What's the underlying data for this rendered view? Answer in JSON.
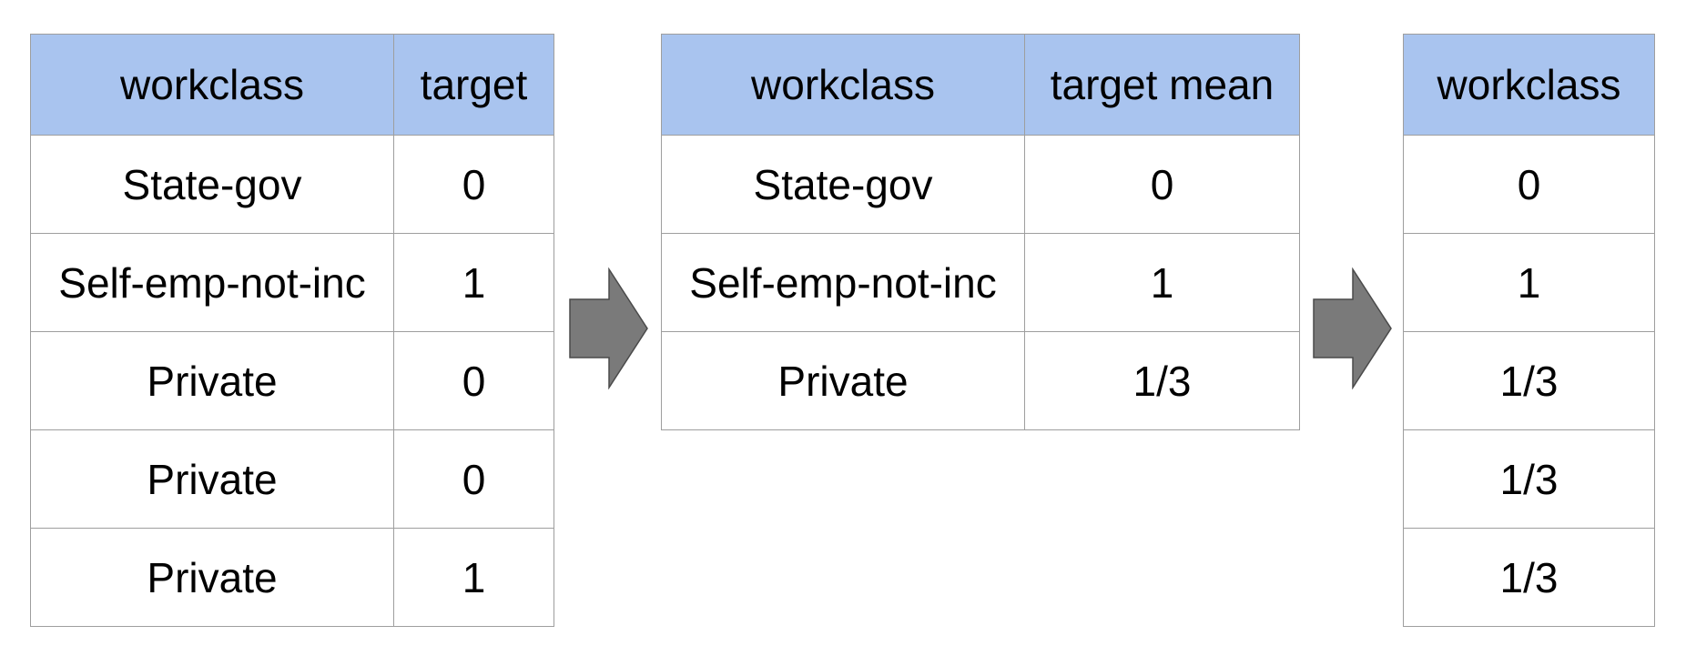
{
  "colors": {
    "header_bg": "#a9c4ef",
    "border": "#9e9e9e",
    "arrow_fill": "#7a7a7a"
  },
  "input_table": {
    "headers": [
      "workclass",
      "target"
    ],
    "rows": [
      [
        "State-gov",
        "0"
      ],
      [
        "Self-emp-not-inc",
        "1"
      ],
      [
        "Private",
        "0"
      ],
      [
        "Private",
        "0"
      ],
      [
        "Private",
        "1"
      ]
    ]
  },
  "means_table": {
    "headers": [
      "workclass",
      "target mean"
    ],
    "rows": [
      [
        "State-gov",
        "0"
      ],
      [
        "Self-emp-not-inc",
        "1"
      ],
      [
        "Private",
        "1/3"
      ]
    ]
  },
  "output_table": {
    "headers": [
      "workclass"
    ],
    "rows": [
      [
        "0"
      ],
      [
        "1"
      ],
      [
        "1/3"
      ],
      [
        "1/3"
      ],
      [
        "1/3"
      ]
    ]
  },
  "icons": [
    "arrow-right-icon",
    "arrow-right-icon"
  ]
}
